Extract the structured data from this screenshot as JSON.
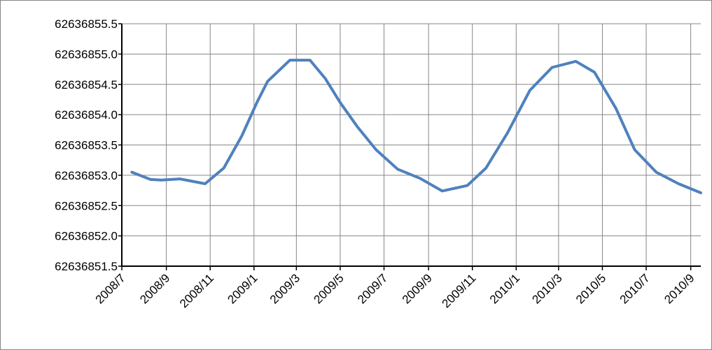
{
  "chart_data": {
    "type": "line",
    "title": "",
    "xlabel": "",
    "ylabel": "",
    "ylim": [
      62636851.5,
      62636855.5
    ],
    "y_ticks": [
      "62636851.5",
      "62636852.0",
      "62636852.5",
      "62636853.0",
      "62636853.5",
      "62636854.0",
      "62636854.5",
      "62636855.0",
      "62636855.5"
    ],
    "x_tick_labels": [
      "2008/7",
      "2008/9",
      "2008/11",
      "2009/1",
      "2009/3",
      "2009/5",
      "2009/7",
      "2009/9",
      "2009/11",
      "2010/1",
      "2010/3",
      "2010/5",
      "2010/7",
      "2010/9"
    ],
    "x_range": [
      "2008/7/1",
      "2010/9/15"
    ],
    "grid": true,
    "legend": "none",
    "series": [
      {
        "color": "#4f81bd",
        "points": [
          {
            "x": "2008/7/15",
            "y": 62636853.05
          },
          {
            "x": "2008/8/10",
            "y": 62636852.93
          },
          {
            "x": "2008/8/25",
            "y": 62636852.92
          },
          {
            "x": "2008/9/20",
            "y": 62636852.94
          },
          {
            "x": "2008/10/25",
            "y": 62636852.86
          },
          {
            "x": "2008/11/20",
            "y": 62636853.12
          },
          {
            "x": "2008/12/15",
            "y": 62636853.65
          },
          {
            "x": "2009/1/5",
            "y": 62636854.2
          },
          {
            "x": "2009/1/20",
            "y": 62636854.55
          },
          {
            "x": "2009/2/20",
            "y": 62636854.9
          },
          {
            "x": "2009/3/20",
            "y": 62636854.9
          },
          {
            "x": "2009/4/10",
            "y": 62636854.6
          },
          {
            "x": "2009/5/1",
            "y": 62636854.2
          },
          {
            "x": "2009/5/25",
            "y": 62636853.8
          },
          {
            "x": "2009/6/20",
            "y": 62636853.42
          },
          {
            "x": "2009/7/20",
            "y": 62636853.1
          },
          {
            "x": "2009/8/20",
            "y": 62636852.95
          },
          {
            "x": "2009/9/20",
            "y": 62636852.74
          },
          {
            "x": "2009/10/25",
            "y": 62636852.83
          },
          {
            "x": "2009/11/20",
            "y": 62636853.12
          },
          {
            "x": "2009/12/20",
            "y": 62636853.7
          },
          {
            "x": "2010/1/20",
            "y": 62636854.4
          },
          {
            "x": "2010/2/20",
            "y": 62636854.78
          },
          {
            "x": "2010/3/25",
            "y": 62636854.88
          },
          {
            "x": "2010/4/20",
            "y": 62636854.7
          },
          {
            "x": "2010/5/20",
            "y": 62636854.1
          },
          {
            "x": "2010/6/15",
            "y": 62636853.42
          },
          {
            "x": "2010/7/15",
            "y": 62636853.05
          },
          {
            "x": "2010/8/15",
            "y": 62636852.86
          },
          {
            "x": "2010/9/15",
            "y": 62636852.71
          }
        ]
      }
    ]
  }
}
